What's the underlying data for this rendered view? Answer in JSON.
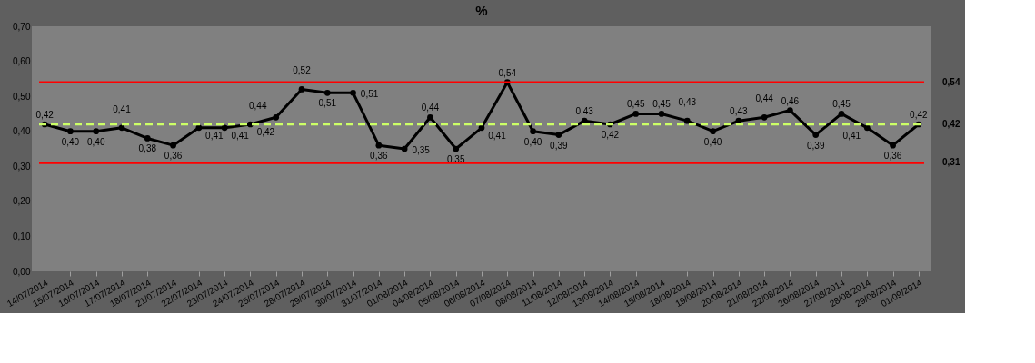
{
  "chart_data": {
    "type": "line",
    "title": "%",
    "categories": [
      "14/07/2014",
      "15/07/2014",
      "16/07/2014",
      "17/07/2014",
      "18/07/2014",
      "21/07/2014",
      "22/07/2014",
      "23/07/2014",
      "24/07/2014",
      "25/07/2014",
      "28/07/2014",
      "29/07/2014",
      "30/07/2014",
      "31/07/2014",
      "01/08/2014",
      "04/08/2014",
      "05/08/2014",
      "06/08/2014",
      "07/08/2014",
      "08/08/2014",
      "11/08/2014",
      "12/08/2014",
      "13/09/2014",
      "14/08/2014",
      "15/08/2014",
      "18/08/2014",
      "19/08/2014",
      "20/08/2014",
      "21/08/2014",
      "22/08/2014",
      "26/08/2014",
      "27/08/2014",
      "28/08/2014",
      "29/08/2014",
      "01/09/2014"
    ],
    "series": [
      {
        "color": "#000000",
        "values": [
          0.42,
          0.4,
          0.4,
          0.41,
          0.38,
          0.36,
          0.41,
          0.41,
          0.42,
          0.44,
          0.52,
          0.51,
          0.51,
          0.36,
          0.35,
          0.44,
          0.35,
          0.41,
          0.54,
          0.4,
          0.39,
          0.43,
          0.42,
          0.45,
          0.45,
          0.43,
          0.4,
          0.43,
          0.44,
          0.46,
          0.39,
          0.45,
          0.41,
          0.36,
          0.42
        ],
        "value_labels": [
          "0,42",
          "0,40",
          "0,40",
          "0,41",
          "0,38",
          "0,36",
          "0,41",
          "0,41",
          "0,42",
          "0,44",
          "0,52",
          "0,51",
          "0,51",
          "0,36",
          "0,35",
          "0,44",
          "0,35",
          "0,41",
          "0,54",
          "0,40",
          "0,39",
          "0,43",
          "0,42",
          "0,45",
          "0,45",
          "0,43",
          "0,40",
          "0,43",
          "0,44",
          "0,46",
          "0,39",
          "0,45",
          "0,41",
          "0,36",
          "0,42"
        ]
      }
    ],
    "ylim": [
      0,
      0.7
    ],
    "yticks": [
      {
        "value": 0,
        "label": "0,00"
      },
      {
        "value": 0.1,
        "label": "0,10"
      },
      {
        "value": 0.2,
        "label": "0,20"
      },
      {
        "value": 0.3,
        "label": "0,30"
      },
      {
        "value": 0.4,
        "label": "0,40"
      },
      {
        "value": 0.5,
        "label": "0,50"
      },
      {
        "value": 0.6,
        "label": "0,60"
      },
      {
        "value": 0.7,
        "label": "0,70"
      }
    ],
    "ref_lines": [
      {
        "axis": "y",
        "value": 0.54,
        "label": "0,54",
        "color": "#ff0000",
        "line_style": "solid"
      },
      {
        "axis": "y",
        "value": 0.42,
        "label": "0,42",
        "color": "#ccff66",
        "line_style": "dashed"
      },
      {
        "axis": "y",
        "value": 0.31,
        "label": "0,31",
        "color": "#ff0000",
        "line_style": "solid"
      }
    ],
    "marker": "circle",
    "line_style": "solid",
    "grid": false
  }
}
